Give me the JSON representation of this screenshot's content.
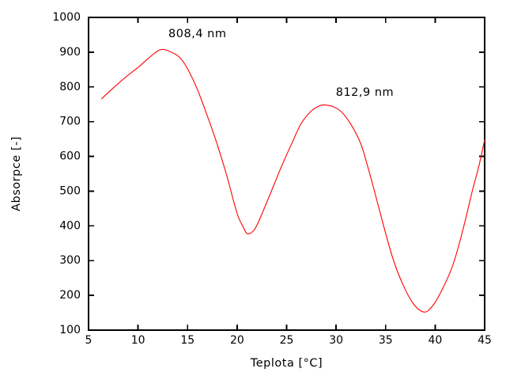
{
  "chart_data": {
    "type": "line",
    "title": "",
    "xlabel": "Teplota [°C]",
    "ylabel": "Absorpce [-]",
    "xlim": [
      5,
      45
    ],
    "ylim": [
      100,
      1000
    ],
    "x_ticks": [
      5,
      10,
      15,
      20,
      25,
      30,
      35,
      40,
      45
    ],
    "y_ticks": [
      100,
      200,
      300,
      400,
      500,
      600,
      700,
      800,
      900,
      1000
    ],
    "grid": false,
    "legend": "none",
    "background": "#ffffff",
    "axis_color": "#000000",
    "series": [
      {
        "name": "absorbance-vs-temperature",
        "color": "#ff0000",
        "points": [
          [
            6.3,
            765
          ],
          [
            7,
            784
          ],
          [
            8,
            810
          ],
          [
            9,
            834
          ],
          [
            10,
            856
          ],
          [
            11,
            881
          ],
          [
            11.8,
            900
          ],
          [
            12.4,
            908
          ],
          [
            13.2,
            902
          ],
          [
            14.2,
            885
          ],
          [
            15,
            852
          ],
          [
            16,
            792
          ],
          [
            17,
            716
          ],
          [
            18,
            634
          ],
          [
            19,
            540
          ],
          [
            20,
            436
          ],
          [
            20.6,
            398
          ],
          [
            21,
            378
          ],
          [
            21.5,
            382
          ],
          [
            22,
            402
          ],
          [
            23,
            468
          ],
          [
            23.6,
            510
          ],
          [
            24.5,
            572
          ],
          [
            25.5,
            636
          ],
          [
            26.5,
            696
          ],
          [
            27.5,
            731
          ],
          [
            28.2,
            744
          ],
          [
            28.7,
            748
          ],
          [
            29.6,
            744
          ],
          [
            30.5,
            729
          ],
          [
            31.5,
            692
          ],
          [
            32.5,
            636
          ],
          [
            33.2,
            570
          ],
          [
            33.8,
            508
          ],
          [
            34.8,
            400
          ],
          [
            35.8,
            300
          ],
          [
            36.8,
            228
          ],
          [
            37.8,
            176
          ],
          [
            38.9,
            152
          ],
          [
            39.8,
            172
          ],
          [
            40.8,
            222
          ],
          [
            41.8,
            288
          ],
          [
            42.8,
            388
          ],
          [
            43.8,
            506
          ],
          [
            44.4,
            570
          ],
          [
            45,
            648
          ]
        ]
      }
    ],
    "annotations": [
      {
        "text": "808,4 nm",
        "x": 16.0,
        "y": 952
      },
      {
        "text": "812,9 nm",
        "x": 32.9,
        "y": 783
      }
    ]
  }
}
